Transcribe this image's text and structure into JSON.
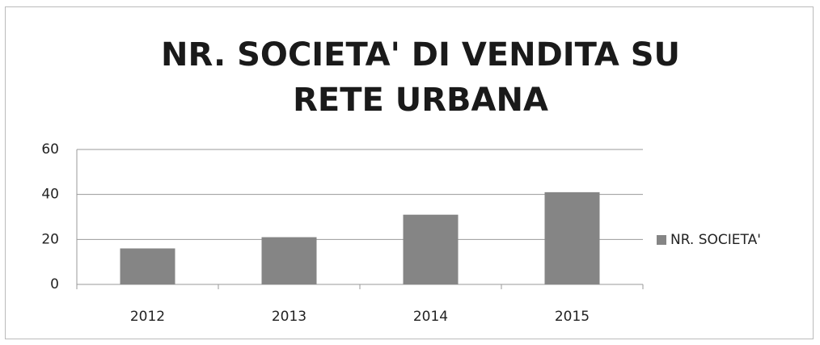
{
  "chart_data": {
    "type": "bar",
    "title": "NR. SOCIETA' DI VENDITA SU RETE URBANA",
    "categories": [
      "2012",
      "2013",
      "2014",
      "2015"
    ],
    "series": [
      {
        "name": "NR. SOCIETA'",
        "color": "#858585",
        "values": [
          16,
          21,
          31,
          41
        ]
      }
    ],
    "ylim": [
      0,
      60
    ],
    "yticks": [
      0,
      20,
      40,
      60
    ],
    "grid": true,
    "legend": "right"
  }
}
